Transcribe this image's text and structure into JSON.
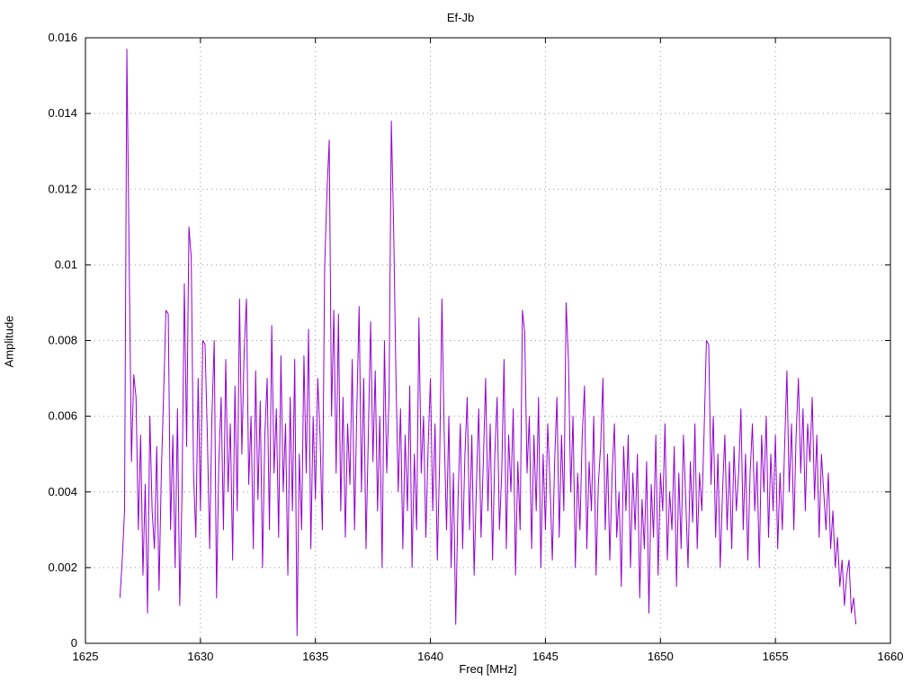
{
  "page": {
    "background": "#ffffff"
  },
  "chart_data": {
    "type": "line",
    "title": "Ef-Jb",
    "xlabel": "Freq [MHz]",
    "ylabel": "Amplitude",
    "xlim": [
      1625,
      1660
    ],
    "ylim": [
      0,
      0.016
    ],
    "grid": true,
    "legend": "none",
    "line_color": "#9400d3",
    "grid_color": "#999999",
    "border_color": "#000000",
    "xtick_values": [
      1625,
      1630,
      1635,
      1640,
      1645,
      1650,
      1655,
      1660
    ],
    "xtick_labels": [
      "1625",
      "1630",
      "1635",
      "1640",
      "1645",
      "1650",
      "1655",
      "1660"
    ],
    "ytick_values": [
      0,
      0.002,
      0.004,
      0.006,
      0.008,
      0.01,
      0.012,
      0.014,
      0.016
    ],
    "ytick_labels": [
      "0",
      "0.002",
      "0.004",
      "0.006",
      "0.008",
      "0.01",
      "0.012",
      "0.014",
      "0.016"
    ],
    "series": [
      {
        "name": "Ef-Jb",
        "x_start": 1626.5,
        "x_step": 0.1,
        "value_scale": 0.0001,
        "values": [
          12,
          22,
          35,
          157,
          102,
          48,
          71,
          65,
          30,
          55,
          18,
          42,
          8,
          60,
          35,
          25,
          52,
          14,
          45,
          66,
          88,
          87,
          30,
          55,
          20,
          62,
          10,
          40,
          95,
          52,
          110,
          102,
          45,
          28,
          70,
          35,
          80,
          79,
          55,
          25,
          60,
          80,
          12,
          48,
          65,
          30,
          75,
          40,
          58,
          22,
          68,
          35,
          91,
          50,
          77,
          91,
          42,
          60,
          25,
          72,
          38,
          64,
          20,
          55,
          70,
          30,
          84,
          45,
          62,
          28,
          76,
          40,
          58,
          18,
          65,
          35,
          75,
          2,
          50,
          30,
          76,
          45,
          83,
          25,
          60,
          38,
          70,
          55,
          30,
          99,
          119,
          133,
          60,
          88,
          45,
          87,
          35,
          65,
          28,
          58,
          42,
          75,
          30,
          62,
          89,
          40,
          70,
          25,
          55,
          85,
          48,
          72,
          35,
          60,
          20,
          80,
          45,
          65,
          138,
          110,
          71,
          40,
          62,
          25,
          55,
          35,
          68,
          20,
          50,
          30,
          86,
          45,
          60,
          28,
          52,
          70,
          35,
          58,
          22,
          48,
          91,
          55,
          30,
          60,
          20,
          45,
          5,
          38,
          58,
          25,
          50,
          65,
          30,
          55,
          18,
          42,
          62,
          28,
          48,
          70,
          35,
          58,
          22,
          50,
          65,
          30,
          45,
          75,
          25,
          55,
          40,
          62,
          18,
          48,
          30,
          88,
          82,
          45,
          60,
          25,
          55,
          35,
          65,
          20,
          50,
          30,
          58,
          42,
          22,
          48,
          65,
          28,
          55,
          35,
          90,
          75,
          40,
          60,
          20,
          45,
          30,
          55,
          68,
          25,
          48,
          35,
          60,
          18,
          42,
          52,
          70,
          30,
          50,
          22,
          45,
          58,
          28,
          40,
          15,
          52,
          35,
          55,
          20,
          45,
          30,
          50,
          12,
          38,
          25,
          48,
          8,
          42,
          28,
          55,
          18,
          45,
          35,
          58,
          22,
          40,
          30,
          52,
          15,
          45,
          25,
          55,
          38,
          20,
          48,
          32,
          58,
          25,
          45,
          35,
          56,
          80,
          79,
          42,
          60,
          28,
          50,
          20,
          40,
          55,
          30,
          48,
          25,
          52,
          35,
          45,
          62,
          30,
          50,
          22,
          45,
          58,
          35,
          48,
          20,
          55,
          40,
          60,
          28,
          50,
          35,
          55,
          25,
          45,
          30,
          52,
          72,
          40,
          58,
          30,
          55,
          70,
          45,
          62,
          35,
          58,
          48,
          65,
          38,
          55,
          28,
          50,
          40,
          30,
          45,
          25,
          35,
          20,
          28,
          15,
          22,
          10,
          18,
          22,
          8,
          12,
          5
        ]
      }
    ]
  }
}
